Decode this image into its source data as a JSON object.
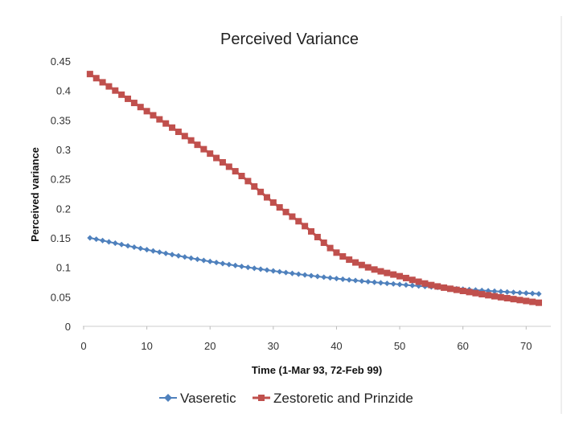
{
  "chart_data": {
    "type": "line",
    "title": "Perceived Variance",
    "xlabel": "Time (1-Mar 93, 72-Feb 99)",
    "ylabel": "Perceived variance",
    "xlim": [
      0,
      72
    ],
    "ylim": [
      0,
      0.45
    ],
    "x_ticks": [
      0,
      10,
      20,
      30,
      40,
      50,
      60,
      70
    ],
    "x_tick_labels": [
      "0",
      "10",
      "20",
      "30",
      "40",
      "50",
      "60",
      "70"
    ],
    "y_ticks": [
      0,
      0.05,
      0.1,
      0.15,
      0.2,
      0.25,
      0.3,
      0.35,
      0.4,
      0.45
    ],
    "y_tick_labels": [
      "0",
      "0.05",
      "0.1",
      "0.15",
      "0.2",
      "0.25",
      "0.3",
      "0.35",
      "0.4",
      "0.45"
    ],
    "grid": false,
    "legend_position": "bottom",
    "series": [
      {
        "name": "Vaseretic",
        "color": "#4f81bd",
        "marker": "diamond",
        "x": [
          1,
          10,
          20,
          30,
          40,
          50,
          60,
          72
        ],
        "y": [
          0.15,
          0.13,
          0.11,
          0.094,
          0.081,
          0.071,
          0.063,
          0.055
        ]
      },
      {
        "name": "Zestoretic and Prinzide",
        "color": "#c0504d",
        "marker": "square",
        "x": [
          1,
          5,
          10,
          15,
          20,
          25,
          30,
          35,
          40,
          45,
          50,
          55,
          60,
          65,
          70,
          72
        ],
        "y": [
          0.428,
          0.4,
          0.365,
          0.33,
          0.293,
          0.255,
          0.21,
          0.17,
          0.125,
          0.1,
          0.085,
          0.07,
          0.06,
          0.051,
          0.043,
          0.04
        ]
      }
    ]
  }
}
